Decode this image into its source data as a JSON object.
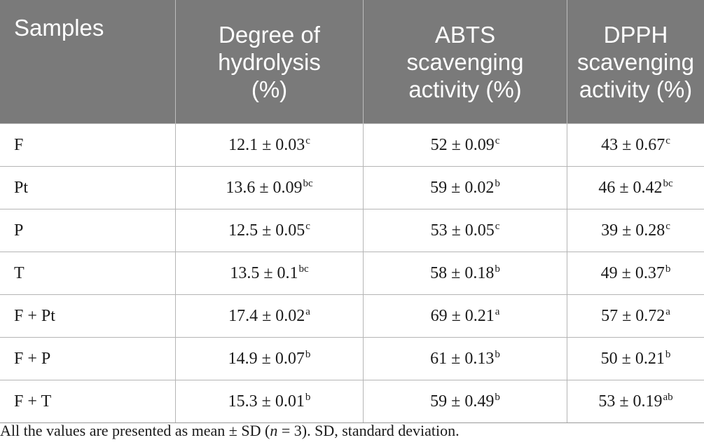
{
  "table": {
    "headers": [
      "Samples",
      "Degree of hydrolysis (%)",
      "ABTS scavenging activity (%)",
      "DPPH scavenging activity (%)"
    ],
    "header_lines": [
      [
        "Samples"
      ],
      [
        "Degree of",
        "hydrolysis",
        "(%)"
      ],
      [
        "ABTS",
        "scavenging",
        "activity (%)"
      ],
      [
        "DPPH",
        "scavenging",
        "activity (%)"
      ]
    ],
    "rows": [
      {
        "sample": "F",
        "cells": [
          {
            "v": "12.1 ± 0.03",
            "s": "c"
          },
          {
            "v": "52 ± 0.09",
            "s": "c"
          },
          {
            "v": "43 ± 0.67",
            "s": "c"
          }
        ]
      },
      {
        "sample": "Pt",
        "cells": [
          {
            "v": "13.6 ± 0.09",
            "s": "bc"
          },
          {
            "v": "59 ± 0.02",
            "s": "b"
          },
          {
            "v": "46 ± 0.42",
            "s": "bc"
          }
        ]
      },
      {
        "sample": "P",
        "cells": [
          {
            "v": "12.5 ± 0.05",
            "s": "c"
          },
          {
            "v": "53 ± 0.05",
            "s": "c"
          },
          {
            "v": "39 ± 0.28",
            "s": "c"
          }
        ]
      },
      {
        "sample": "T",
        "cells": [
          {
            "v": "13.5 ± 0.1",
            "s": "bc"
          },
          {
            "v": "58 ± 0.18",
            "s": "b"
          },
          {
            "v": "49 ± 0.37",
            "s": "b"
          }
        ]
      },
      {
        "sample": "F + Pt",
        "cells": [
          {
            "v": "17.4 ± 0.02",
            "s": "a"
          },
          {
            "v": "69 ± 0.21",
            "s": "a"
          },
          {
            "v": "57 ± 0.72",
            "s": "a"
          }
        ]
      },
      {
        "sample": "F + P",
        "cells": [
          {
            "v": "14.9 ± 0.07",
            "s": "b"
          },
          {
            "v": "61 ± 0.13",
            "s": "b"
          },
          {
            "v": "50 ± 0.21",
            "s": "b"
          }
        ]
      },
      {
        "sample": "F + T",
        "cells": [
          {
            "v": "15.3 ± 0.01",
            "s": "b"
          },
          {
            "v": "59 ± 0.49",
            "s": "b"
          },
          {
            "v": "53 ± 0.19",
            "s": "ab"
          }
        ]
      }
    ]
  },
  "footnote": {
    "before": "All the values are presented as mean ± SD (",
    "italic": "n",
    "after": " = 3). SD, standard deviation."
  },
  "colors": {
    "header_bg": "#7a7a7a",
    "header_text": "#ffffff",
    "grid": "#b5b5b5"
  }
}
